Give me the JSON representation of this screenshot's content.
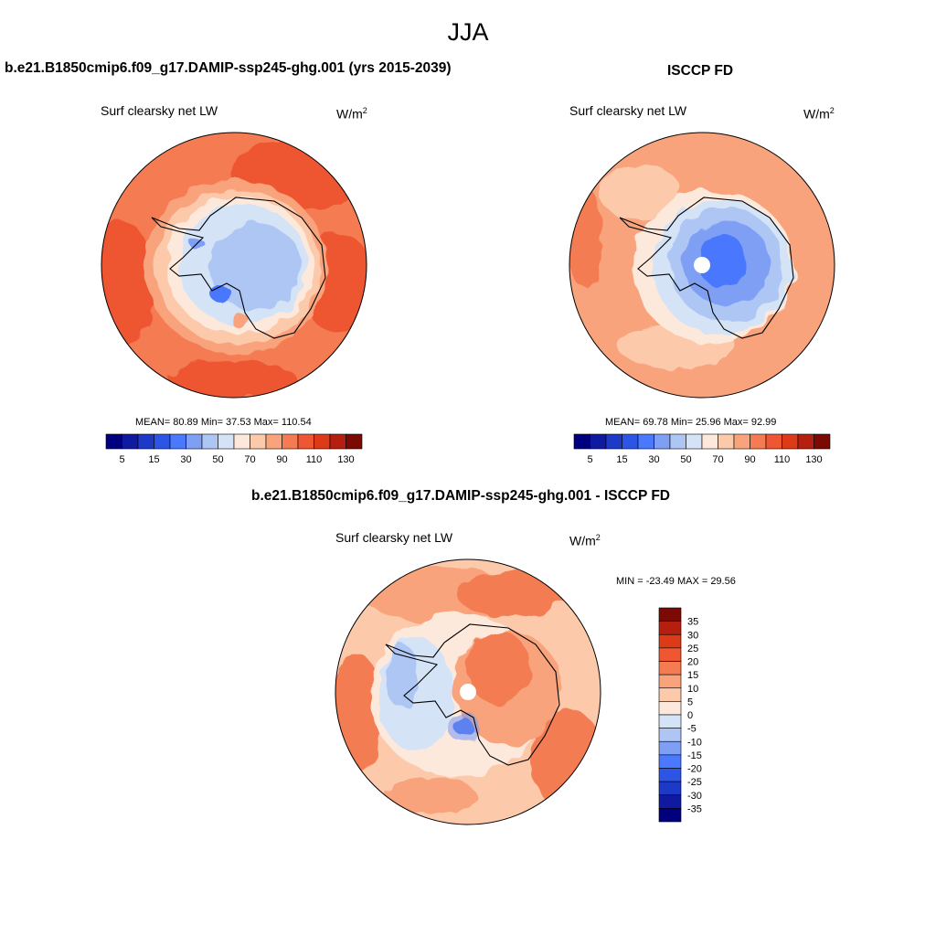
{
  "figure_title": "JJA",
  "panels": [
    {
      "title": "b.e21.B1850cmip6.f09_g17.DAMIP-ssp245-ghg.001 (yrs 2015-2039)",
      "variable": "Surf clearsky net LW",
      "units_base": "W/m",
      "units_exp": "2",
      "stats": "MEAN=  80.89  Min=  37.53  Max= 110.54"
    },
    {
      "title": "ISCCP FD",
      "variable": "Surf clearsky net LW",
      "units_base": "W/m",
      "units_exp": "2",
      "stats": "MEAN=  69.78  Min=  25.96  Max=  92.99"
    },
    {
      "title": "b.e21.B1850cmip6.f09_g17.DAMIP-ssp245-ghg.001 - ISCCP FD",
      "variable": "Surf clearsky net LW",
      "units_base": "W/m",
      "units_exp": "2",
      "stats": "MIN = -23.49 MAX =  29.56"
    }
  ],
  "chart_data": [
    {
      "type": "heatmap",
      "projection": "south polar stereographic",
      "title": "b.e21.B1850cmip6.f09_g17.DAMIP-ssp245-ghg.001 (yrs 2015-2039)",
      "variable": "Surf clearsky net LW",
      "units": "W/m2",
      "mean": 80.89,
      "min": 37.53,
      "max": 110.54,
      "contour_levels": [
        5,
        10,
        15,
        20,
        30,
        40,
        50,
        60,
        70,
        80,
        90,
        100,
        110,
        120,
        130
      ],
      "colorbar_tick_labels": [
        "5",
        "15",
        "30",
        "50",
        "70",
        "90",
        "110",
        "130"
      ],
      "colors": [
        "#00007f",
        "#0f1aa0",
        "#1d39c8",
        "#2c55e6",
        "#4a78ff",
        "#7e9ff3",
        "#aec6f4",
        "#d5e3f7",
        "#fde9dc",
        "#fcc9aa",
        "#f8a37c",
        "#f47b52",
        "#ee5731",
        "#dd3a17",
        "#b51f0f",
        "#7a0a03"
      ]
    },
    {
      "type": "heatmap",
      "projection": "south polar stereographic",
      "title": "ISCCP FD",
      "variable": "Surf clearsky net LW",
      "units": "W/m2",
      "mean": 69.78,
      "min": 25.96,
      "max": 92.99,
      "contour_levels": [
        5,
        10,
        15,
        20,
        30,
        40,
        50,
        60,
        70,
        80,
        90,
        100,
        110,
        120,
        130
      ],
      "colorbar_tick_labels": [
        "5",
        "15",
        "30",
        "50",
        "70",
        "90",
        "110",
        "130"
      ],
      "colors": [
        "#00007f",
        "#0f1aa0",
        "#1d39c8",
        "#2c55e6",
        "#4a78ff",
        "#7e9ff3",
        "#aec6f4",
        "#d5e3f7",
        "#fde9dc",
        "#fcc9aa",
        "#f8a37c",
        "#f47b52",
        "#ee5731",
        "#dd3a17",
        "#b51f0f",
        "#7a0a03"
      ]
    },
    {
      "type": "heatmap",
      "projection": "south polar stereographic",
      "title": "b.e21.B1850cmip6.f09_g17.DAMIP-ssp245-ghg.001 - ISCCP FD",
      "variable": "Surf clearsky net LW",
      "units": "W/m2",
      "min": -23.49,
      "max": 29.56,
      "contour_levels": [
        35,
        30,
        25,
        20,
        15,
        10,
        5,
        0,
        -5,
        -10,
        -15,
        -20,
        -25,
        -30,
        -35
      ],
      "colorbar_tick_labels": [
        "35",
        "30",
        "25",
        "20",
        "15",
        "10",
        "5",
        "0",
        "-5",
        "-10",
        "-15",
        "-20",
        "-25",
        "-30",
        "-35"
      ],
      "colors": [
        "#7a0a03",
        "#b51f0f",
        "#dd3a17",
        "#ee5731",
        "#f47b52",
        "#f8a37c",
        "#fcc9aa",
        "#fde9dc",
        "#d5e3f7",
        "#aec6f4",
        "#7e9ff3",
        "#4a78ff",
        "#2c55e6",
        "#1d39c8",
        "#0f1aa0",
        "#00007f"
      ]
    }
  ]
}
